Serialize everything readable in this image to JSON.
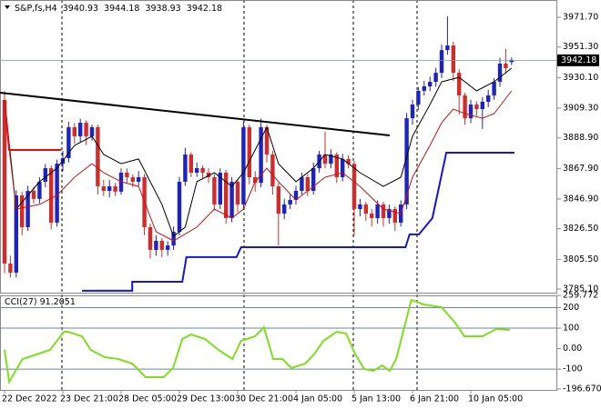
{
  "chart_data": [
    {
      "type": "candlestick",
      "title": "S&P,fs,H4",
      "categories": [
        "22 Dec 2022",
        null,
        null,
        null,
        null,
        null,
        null,
        null,
        null,
        null,
        "23 Dec 21:00",
        null,
        null,
        null,
        null,
        null,
        null,
        null,
        null,
        null,
        "28 Dec 05:00",
        null,
        null,
        null,
        null,
        null,
        null,
        null,
        null,
        null,
        "29 Dec 13:00",
        null,
        null,
        null,
        null,
        null,
        null,
        null,
        null,
        null,
        "30 Dec 21:00",
        null,
        null,
        null,
        null,
        null,
        null,
        null,
        null,
        null,
        "4 Jan 05:00",
        null,
        null,
        null,
        null,
        null,
        null,
        null,
        null,
        null,
        "5 Jan 13:00",
        null,
        null,
        null,
        null,
        null,
        null,
        null,
        null,
        null,
        "6 Jan 21:00",
        null,
        null,
        null,
        null,
        null,
        null,
        null,
        null,
        null,
        "10 Jan 05:00",
        null,
        null,
        null,
        null,
        null,
        null,
        null
      ],
      "open": [
        3914.9,
        3802.6,
        3796.4,
        3849.4,
        3827.6,
        3852.5,
        3847.0,
        3858.8,
        3868.1,
        3830.7,
        3871.2,
        3875.0,
        3896.2,
        3890.0,
        3899.3,
        3890.0,
        3896.2,
        3855.6,
        3852.5,
        3855.6,
        3852.0,
        3865.0,
        3861.9,
        3858.8,
        3861.9,
        3827.6,
        3812.0,
        3818.2,
        3812.0,
        3815.0,
        3824.4,
        3858.8,
        3877.5,
        3865.0,
        3868.1,
        3865.0,
        3861.9,
        3843.2,
        3865.0,
        3833.8,
        3858.8,
        3843.2,
        3896.2,
        3861.9,
        3858.0,
        3896.2,
        3877.5,
        3855.6,
        3836.9,
        3843.2,
        3846.3,
        3852.5,
        3861.9,
        3852.5,
        3868.1,
        3877.5,
        3871.2,
        3877.5,
        3861.9,
        3874.4,
        3871.0,
        3840.0,
        3843.2,
        3836.9,
        3833.8,
        3843.2,
        3833.8,
        3840.0,
        3830.7,
        3843.2,
        3902.4,
        3911.8,
        3921.2,
        3924.3,
        3927.4,
        3933.6,
        3949.2,
        3952.4,
        3933.6,
        3918.1,
        3902.4,
        3911.8,
        3908.7,
        3913.7,
        3918.1,
        3927.4,
        3939.9,
        3940.93
      ],
      "high": [
        3921.0,
        3808,
        3853,
        3852,
        3856,
        3855,
        3862,
        3871,
        3870,
        3874,
        3880,
        3900,
        3899,
        3902,
        3901,
        3898,
        3898,
        3860,
        3860,
        3858,
        3868,
        3868,
        3864,
        3866,
        3864,
        3830,
        3822,
        3820,
        3818,
        3828,
        3862,
        3882,
        3879,
        3872,
        3870,
        3868,
        3864,
        3868,
        3867,
        3862,
        3860,
        3900,
        3898,
        3866,
        3902,
        3898,
        3880,
        3858,
        3847,
        3850,
        3856,
        3865,
        3864,
        3872,
        3880,
        3893,
        3881,
        3879,
        3878,
        3877,
        3873,
        3847,
        3845,
        3840,
        3846,
        3845,
        3843,
        3842,
        3846,
        3906,
        3915,
        3924,
        3928,
        3931,
        3937,
        3953,
        3972.3,
        3955,
        3936,
        3920,
        3915,
        3914,
        3917,
        3922,
        3930,
        3944,
        3950,
        3944.18
      ],
      "low": [
        3796.0,
        3793,
        3793,
        3822,
        3825,
        3844,
        3844,
        3855,
        3826,
        3828,
        3866,
        3872,
        3885,
        3886,
        3884,
        3887,
        3850,
        3849,
        3848,
        3849,
        3850,
        3858,
        3855,
        3856,
        3822,
        3806,
        3808,
        3807,
        3808,
        3812,
        3822,
        3856,
        3862,
        3862,
        3861,
        3858,
        3839,
        3840,
        3830,
        3831,
        3838,
        3840,
        3857,
        3852,
        3855,
        3872,
        3850,
        3815,
        3833,
        3840,
        3843,
        3850,
        3849,
        3850,
        3865,
        3868,
        3868,
        3858,
        3859,
        3868,
        3822,
        3835,
        3832,
        3828,
        3830,
        3828,
        3830,
        3825,
        3828,
        3840,
        3898,
        3908,
        3918,
        3921,
        3924,
        3930,
        3946,
        3928,
        3905,
        3898,
        3899,
        3904,
        3895,
        3910,
        3915,
        3924,
        3933,
        3938.93
      ],
      "close": [
        3802.6,
        3796.4,
        3849.4,
        3827.6,
        3852.5,
        3847.0,
        3858.8,
        3868.1,
        3830.7,
        3871.2,
        3875.0,
        3896.2,
        3890.0,
        3899.3,
        3890.0,
        3896.2,
        3855.6,
        3852.5,
        3855.6,
        3852.0,
        3865.0,
        3861.9,
        3858.8,
        3861.9,
        3827.6,
        3812.0,
        3818.2,
        3812.0,
        3815.0,
        3824.4,
        3858.8,
        3877.5,
        3865.0,
        3868.1,
        3865.0,
        3861.9,
        3843.2,
        3865.0,
        3833.8,
        3858.8,
        3843.2,
        3896.2,
        3861.9,
        3858.0,
        3896.2,
        3877.5,
        3855.6,
        3836.9,
        3843.2,
        3846.3,
        3852.5,
        3861.9,
        3852.5,
        3868.1,
        3877.5,
        3871.2,
        3877.5,
        3861.9,
        3874.4,
        3871.0,
        3840.0,
        3843.2,
        3836.9,
        3833.8,
        3843.2,
        3833.8,
        3840.0,
        3830.7,
        3843.2,
        3902.4,
        3911.8,
        3921.2,
        3924.3,
        3927.4,
        3933.6,
        3949.2,
        3952.4,
        3933.6,
        3918.1,
        3902.4,
        3911.8,
        3908.7,
        3913.7,
        3918.1,
        3927.4,
        3939.9,
        3936.8,
        3942.18
      ],
      "up_color": "#1c22c4",
      "down_color": "#d42a2a",
      "lines": [
        {
          "color": "#000000",
          "width": 1,
          "x": [
            0,
            2,
            6,
            9,
            12,
            15,
            17,
            20,
            23,
            27,
            29,
            31,
            33,
            36,
            39,
            41,
            43,
            45,
            47,
            50,
            53,
            55,
            58,
            61,
            65,
            68,
            70,
            73,
            75,
            78,
            81,
            84,
            87
          ],
          "values": [
            3914.9,
            3840.0,
            3858.8,
            3868.1,
            3883.7,
            3890.0,
            3877.5,
            3871.2,
            3874.4,
            3843.2,
            3821.3,
            3827.6,
            3858.8,
            3865.0,
            3855.6,
            3865.0,
            3880.6,
            3896.2,
            3871.2,
            3858.8,
            3868.1,
            3877.5,
            3874.4,
            3865.0,
            3855.6,
            3861.9,
            3890.0,
            3911.8,
            3927.4,
            3930.5,
            3921.2,
            3927.4,
            3936.8
          ]
        },
        {
          "color": "#cc1111",
          "width": 1,
          "x": [
            0,
            2,
            6,
            9,
            12,
            15,
            17,
            20,
            23,
            26,
            29,
            33,
            36,
            39,
            41,
            43,
            45,
            47,
            50,
            53,
            55,
            58,
            61,
            65,
            68,
            70,
            73,
            75,
            77,
            79,
            82,
            84,
            87
          ],
          "values": [
            3908.7,
            3840.0,
            3843.2,
            3849.4,
            3861.9,
            3871.2,
            3865.0,
            3858.8,
            3855.6,
            3824.4,
            3818.2,
            3827.6,
            3840.0,
            3833.8,
            3840.0,
            3858.8,
            3868.1,
            3858.8,
            3846.3,
            3855.6,
            3861.9,
            3865.0,
            3855.6,
            3840.0,
            3836.9,
            3861.9,
            3883.7,
            3899.3,
            3908.7,
            3905.6,
            3902.4,
            3905.6,
            3921.2
          ]
        },
        {
          "color": "#1515e0",
          "width": 2,
          "x": [
            13.3,
            21.9,
            21.9,
            30.5,
            31.2,
            39.8,
            40.6,
            68.8,
            69.5,
            71.1,
            73.4,
            75.8,
            87.5
          ],
          "values": [
            3783.9,
            3783.9,
            3790.1,
            3790.1,
            3807.0,
            3807.0,
            3813.8,
            3813.8,
            3822.6,
            3822.6,
            3833.8,
            3878.7,
            3878.7
          ]
        },
        {
          "color": "#000000",
          "width": 2,
          "x": [
            -0.8,
            66.1
          ],
          "values": [
            3919.9,
            3890.6
          ]
        },
        {
          "color": "#dd1111",
          "width": 2,
          "x": [
            0,
            0.8,
            9.7
          ],
          "values": [
            3914.9,
            3880.6,
            3880.6
          ]
        }
      ],
      "ylim": [
        3782.6,
        3983.6
      ],
      "yticks": [
        {
          "value": 3971.7,
          "label": "3971.70"
        },
        {
          "value": 3951.3,
          "label": "3951.30"
        },
        {
          "value": 3930.1,
          "label": "3930.10"
        },
        {
          "value": 3909.3,
          "label": "3909.30"
        },
        {
          "value": 3888.9,
          "label": "3888.90"
        },
        {
          "value": 3867.9,
          "label": "3867.90"
        },
        {
          "value": 3846.9,
          "label": "3846.90"
        },
        {
          "value": 3826.5,
          "label": "3826.50"
        },
        {
          "value": 3805.5,
          "label": "3805.50"
        },
        {
          "value": 3785.1,
          "label": "3785.10"
        }
      ]
    },
    {
      "type": "line",
      "title": "CCI(27)",
      "color": "#7ee01c",
      "x": [
        0,
        0.8,
        3.1,
        5.5,
        7.8,
        10.2,
        10.9,
        13.3,
        14.8,
        17.2,
        19.5,
        21.9,
        24.2,
        27.3,
        28.9,
        30.5,
        32,
        34.4,
        36.7,
        39.1,
        40.6,
        43,
        44.5,
        46.1,
        47.7,
        49.2,
        51.6,
        53.1,
        54.7,
        57,
        58.6,
        60.2,
        61.7,
        63.3,
        64.8,
        66.1,
        67.2,
        68.8,
        69.8,
        71.9,
        75,
        77.3,
        78.9,
        82,
        84.4,
        86.7
      ],
      "values": [
        -6.0,
        -161,
        -50.4,
        -28.2,
        -6.0,
        82.5,
        82.5,
        60.4,
        -6.0,
        -41.5,
        -50.4,
        -72.5,
        -139,
        -139,
        -94.7,
        47.1,
        69.3,
        47.1,
        -6.0,
        -50.4,
        38.3,
        60.4,
        104.7,
        -50.4,
        -50.4,
        -94.7,
        -72.5,
        -28.2,
        38.3,
        82.5,
        73.7,
        -28.2,
        -99,
        -108,
        -81.4,
        -108,
        -50.4,
        126.8,
        237.6,
        215.5,
        202.2,
        126.8,
        60.4,
        60.4,
        95.8,
        91.2051
      ],
      "levels": [
        200,
        100,
        -100
      ],
      "levels_color": "#6b86a3",
      "ylim": [
        -196.6702,
        259.772
      ],
      "yticks": [
        259.772,
        200,
        100,
        {
          "value": 0,
          "label": "0.00"
        },
        -100,
        -196.6702
      ]
    }
  ]
}
